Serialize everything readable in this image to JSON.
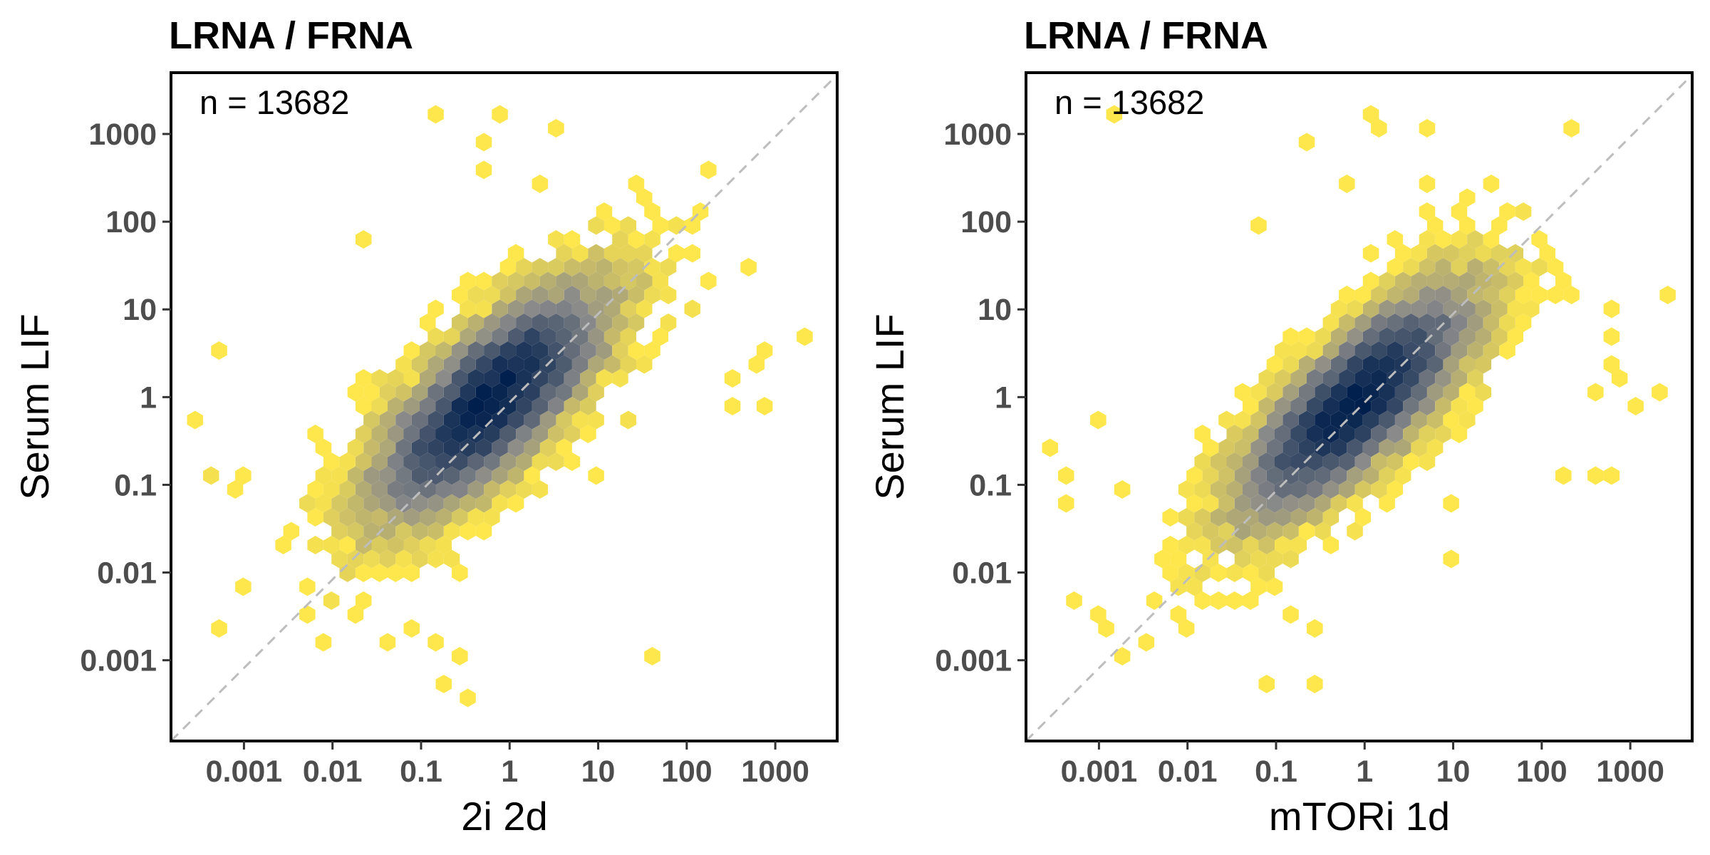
{
  "chart_data": [
    {
      "type": "hexbin",
      "title": "LRNA / FRNA",
      "annotation": "n = 13682",
      "xlabel": "2i 2d",
      "ylabel": "Serum LIF",
      "x_scale": "log10",
      "y_scale": "log10",
      "xlim": [
        0.00015,
        5000
      ],
      "ylim": [
        0.00012,
        5000
      ],
      "x_ticks": [
        0.001,
        0.01,
        0.1,
        1,
        10,
        100,
        1000
      ],
      "x_tick_labels": [
        "0.001",
        "0.01",
        "0.1",
        "1",
        "10",
        "100",
        "1000"
      ],
      "y_ticks": [
        0.001,
        0.01,
        0.1,
        1,
        10,
        100,
        1000
      ],
      "y_tick_labels": [
        "0.001",
        "0.01",
        "0.1",
        "1",
        "10",
        "100",
        "1000"
      ],
      "reference_line": "y = x (dashed grey)",
      "color_scale": {
        "low": "#fde74c",
        "mid": "#8a8a8a",
        "high": "#001f4d"
      },
      "density_center": {
        "x": 0.6,
        "y": 0.9
      },
      "spread_sd_log10": {
        "x": 0.62,
        "y": 0.62
      },
      "correlation": 0.75,
      "outliers": [
        [
          0.15,
          2000
        ],
        [
          0.9,
          1400
        ],
        [
          0.5,
          950
        ],
        [
          4,
          1000
        ],
        [
          0.5,
          350
        ],
        [
          2,
          250
        ],
        [
          30,
          250
        ],
        [
          0.02,
          65
        ],
        [
          40,
          60
        ],
        [
          500,
          30
        ],
        [
          200,
          20
        ],
        [
          100,
          10
        ],
        [
          2000,
          5
        ],
        [
          500,
          2.5
        ],
        [
          800,
          3
        ],
        [
          400,
          1.5
        ],
        [
          800,
          0.7
        ],
        [
          400,
          0.7
        ],
        [
          0.0005,
          4
        ],
        [
          0.0003,
          0.5
        ],
        [
          0.0004,
          0.15
        ],
        [
          0.0005,
          0.15
        ],
        [
          0.0007,
          0.1
        ],
        [
          0.001,
          0.15
        ],
        [
          0.0008,
          0.007
        ],
        [
          0.0006,
          0.0025
        ],
        [
          0.02,
          0.005
        ],
        [
          0.03,
          0.009
        ],
        [
          0.04,
          0.0018
        ],
        [
          0.09,
          0.0025
        ],
        [
          0.15,
          0.0018
        ],
        [
          0.3,
          0.0012
        ],
        [
          0.15,
          0.0005
        ],
        [
          0.4,
          0.0004
        ],
        [
          50,
          0.0012
        ],
        [
          5,
          0.35
        ],
        [
          10,
          0.15
        ],
        [
          20,
          0.5
        ]
      ]
    },
    {
      "type": "hexbin",
      "title": "LRNA / FRNA",
      "annotation": "n = 13682",
      "xlabel": "mTORi 1d",
      "ylabel": "Serum LIF",
      "x_scale": "log10",
      "y_scale": "log10",
      "xlim": [
        0.00015,
        5000
      ],
      "ylim": [
        0.00012,
        5000
      ],
      "x_ticks": [
        0.001,
        0.01,
        0.1,
        1,
        10,
        100,
        1000
      ],
      "x_tick_labels": [
        "0.001",
        "0.01",
        "0.1",
        "1",
        "10",
        "100",
        "1000"
      ],
      "y_ticks": [
        0.001,
        0.01,
        0.1,
        1,
        10,
        100,
        1000
      ],
      "y_tick_labels": [
        "0.001",
        "0.01",
        "0.1",
        "1",
        "10",
        "100",
        "1000"
      ],
      "reference_line": "y = x (dashed grey)",
      "color_scale": {
        "low": "#fde74c",
        "mid": "#8a8a8a",
        "high": "#001f4d"
      },
      "density_center": {
        "x": 0.8,
        "y": 0.85
      },
      "spread_sd_log10": {
        "x": 0.62,
        "y": 0.62
      },
      "correlation": 0.78,
      "outliers": [
        [
          0.0018,
          2000
        ],
        [
          1.2,
          1400
        ],
        [
          1.5,
          1000
        ],
        [
          6,
          1000
        ],
        [
          0.25,
          700
        ],
        [
          0.7,
          250
        ],
        [
          6,
          250
        ],
        [
          25,
          250
        ],
        [
          0.06,
          90
        ],
        [
          180,
          20
        ],
        [
          250,
          15
        ],
        [
          600,
          10
        ],
        [
          600,
          5
        ],
        [
          3000,
          15
        ],
        [
          500,
          2.5
        ],
        [
          800,
          1.8
        ],
        [
          400,
          1
        ],
        [
          1200,
          0.7
        ],
        [
          2500,
          1
        ],
        [
          200,
          0.15
        ],
        [
          350,
          0.12
        ],
        [
          600,
          0.15
        ],
        [
          0.0003,
          0.25
        ],
        [
          0.0005,
          0.12
        ],
        [
          0.0005,
          0.06
        ],
        [
          0.0009,
          0.5
        ],
        [
          0.0018,
          0.09
        ],
        [
          0.0006,
          0.005
        ],
        [
          0.0008,
          0.003
        ],
        [
          0.001,
          0.002
        ],
        [
          0.002,
          0.0013
        ],
        [
          0.003,
          0.0018
        ],
        [
          0.15,
          0.003
        ],
        [
          0.25,
          0.0025
        ],
        [
          0.08,
          0.0005
        ],
        [
          0.25,
          0.0005
        ],
        [
          8,
          0.015
        ],
        [
          10,
          0.07
        ],
        [
          5,
          0.35
        ]
      ]
    }
  ]
}
